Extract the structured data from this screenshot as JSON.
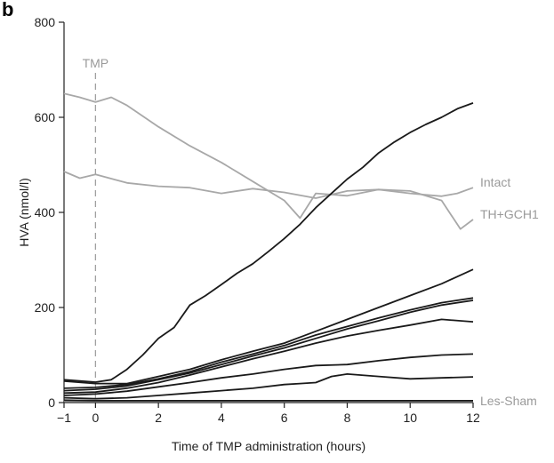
{
  "panel_label": "b",
  "chart_data": {
    "type": "line",
    "title": "",
    "xlabel": "Time of TMP administration (hours)",
    "ylabel": "HVA (nmol/l)",
    "xlim": [
      -1,
      12
    ],
    "ylim": [
      0,
      800
    ],
    "xticks": [
      -1,
      0,
      2,
      4,
      6,
      8,
      10,
      12
    ],
    "xtick_labels": [
      "−1",
      "0",
      "2",
      "4",
      "6",
      "8",
      "10",
      "12"
    ],
    "yticks": [
      0,
      200,
      400,
      600,
      800
    ],
    "grid": false,
    "legend": "none",
    "annotations": [
      {
        "text": "TMP",
        "type": "vertical-dashed-line",
        "x": 0,
        "color": "#a0a0a0"
      }
    ],
    "series": [
      {
        "name": "",
        "label": "Intact",
        "color": "#a8a8a8",
        "x": [
          -1,
          -0.5,
          0,
          1,
          2,
          3,
          4,
          5,
          6,
          7,
          8,
          9,
          10,
          11,
          11.5,
          12
        ],
        "y": [
          486,
          472,
          480,
          462,
          455,
          452,
          440,
          450,
          442,
          430,
          445,
          448,
          440,
          434,
          440,
          452
        ]
      },
      {
        "name": "",
        "label": "TH+GCH1",
        "color": "#a8a8a8",
        "x": [
          -1,
          -0.5,
          0,
          0.5,
          1,
          2,
          3,
          4,
          5,
          6,
          6.5,
          7,
          8,
          9,
          10,
          11,
          11.3,
          11.6,
          12
        ],
        "y": [
          650,
          642,
          632,
          642,
          625,
          580,
          540,
          505,
          465,
          425,
          388,
          440,
          435,
          448,
          445,
          425,
          395,
          365,
          385
        ]
      },
      {
        "name": "",
        "label": "Les-Sham",
        "color": "#a8a8a8",
        "x": [
          -1,
          0,
          2,
          4,
          6,
          8,
          10,
          12
        ],
        "y": [
          3,
          3,
          3,
          3,
          3,
          3,
          3,
          3
        ]
      },
      {
        "name": "",
        "label": "",
        "color": "#1a1a1a",
        "x": [
          -1,
          0,
          0.5,
          1,
          1.5,
          2,
          2.5,
          3,
          3.5,
          4,
          4.5,
          5,
          5.5,
          6,
          6.5,
          7,
          7.5,
          8,
          8.5,
          9,
          9.5,
          10,
          10.5,
          11,
          11.5,
          12
        ],
        "y": [
          48,
          43,
          48,
          70,
          100,
          135,
          158,
          205,
          225,
          248,
          272,
          292,
          318,
          345,
          375,
          410,
          440,
          470,
          495,
          525,
          548,
          568,
          585,
          600,
          618,
          630
        ]
      },
      {
        "name": "",
        "label": "",
        "color": "#1a1a1a",
        "x": [
          -1,
          0,
          1,
          2,
          3,
          4,
          5,
          6,
          7,
          8,
          9,
          10,
          11,
          12
        ],
        "y": [
          45,
          40,
          40,
          55,
          70,
          90,
          108,
          125,
          150,
          175,
          200,
          225,
          250,
          280
        ]
      },
      {
        "name": "",
        "label": "",
        "color": "#1a1a1a",
        "x": [
          -1,
          0,
          1,
          2,
          3,
          4,
          5,
          6,
          7,
          8,
          9,
          10,
          11,
          12
        ],
        "y": [
          30,
          32,
          38,
          50,
          65,
          85,
          102,
          120,
          142,
          160,
          178,
          195,
          210,
          220
        ]
      },
      {
        "name": "",
        "label": "",
        "color": "#1a1a1a",
        "x": [
          -1,
          0,
          1,
          2,
          3,
          4,
          5,
          6,
          7,
          8,
          9,
          10,
          11,
          12
        ],
        "y": [
          25,
          28,
          35,
          48,
          62,
          80,
          98,
          115,
          135,
          155,
          172,
          190,
          205,
          215
        ]
      },
      {
        "name": "",
        "label": "",
        "color": "#1a1a1a",
        "x": [
          -1,
          0,
          1,
          2,
          3,
          4,
          5,
          6,
          7,
          8,
          9,
          10,
          11,
          12
        ],
        "y": [
          20,
          22,
          30,
          42,
          58,
          75,
          92,
          108,
          125,
          140,
          152,
          163,
          175,
          170
        ]
      },
      {
        "name": "",
        "label": "",
        "color": "#1a1a1a",
        "x": [
          -1,
          0,
          1,
          2,
          3,
          4,
          5,
          6,
          7,
          8,
          9,
          10,
          11,
          12
        ],
        "y": [
          15,
          18,
          24,
          33,
          42,
          52,
          60,
          70,
          78,
          80,
          88,
          95,
          100,
          102
        ]
      },
      {
        "name": "",
        "label": "",
        "color": "#1a1a1a",
        "x": [
          -1,
          0,
          1,
          2,
          3,
          4,
          5,
          6,
          6.5,
          7,
          7.5,
          8,
          9,
          10,
          11,
          12
        ],
        "y": [
          10,
          8,
          10,
          15,
          20,
          25,
          30,
          38,
          40,
          42,
          55,
          60,
          55,
          50,
          52,
          54
        ]
      },
      {
        "name": "",
        "label": "",
        "color": "#1a1a1a",
        "x": [
          -1,
          0,
          1,
          2,
          3,
          4,
          5,
          6,
          7,
          8,
          9,
          10,
          11,
          12
        ],
        "y": [
          5,
          4,
          4,
          4,
          4,
          4,
          4,
          4,
          4,
          4,
          4,
          4,
          4,
          4
        ]
      }
    ]
  }
}
